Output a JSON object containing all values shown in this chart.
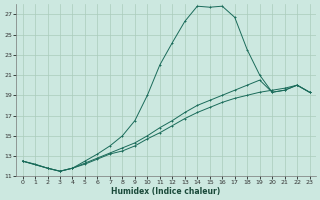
{
  "xlabel": "Humidex (Indice chaleur)",
  "bg_color": "#cce8e0",
  "grid_color": "#aaccbb",
  "line_color": "#1a6b5a",
  "xlim": [
    -0.5,
    23.5
  ],
  "ylim": [
    11,
    28
  ],
  "xticks": [
    0,
    1,
    2,
    3,
    4,
    5,
    6,
    7,
    8,
    9,
    10,
    11,
    12,
    13,
    14,
    15,
    16,
    17,
    18,
    19,
    20,
    21,
    22,
    23
  ],
  "yticks": [
    11,
    13,
    15,
    17,
    19,
    21,
    23,
    25,
    27
  ],
  "series1": [
    [
      0,
      12.5
    ],
    [
      1,
      12.2
    ],
    [
      2,
      11.8
    ],
    [
      3,
      11.5
    ],
    [
      4,
      11.8
    ],
    [
      5,
      12.5
    ],
    [
      6,
      13.2
    ],
    [
      7,
      14.0
    ],
    [
      8,
      15.0
    ],
    [
      9,
      16.5
    ],
    [
      10,
      19.0
    ],
    [
      11,
      22.0
    ],
    [
      12,
      24.2
    ],
    [
      13,
      26.3
    ],
    [
      14,
      27.8
    ],
    [
      15,
      27.7
    ],
    [
      16,
      27.8
    ],
    [
      17,
      26.7
    ],
    [
      18,
      23.5
    ],
    [
      19,
      21.0
    ],
    [
      20,
      19.3
    ],
    [
      21,
      19.5
    ],
    [
      22,
      20.0
    ],
    [
      23,
      19.3
    ]
  ],
  "series2": [
    [
      0,
      12.5
    ],
    [
      2,
      11.8
    ],
    [
      3,
      11.5
    ],
    [
      4,
      11.8
    ],
    [
      5,
      12.3
    ],
    [
      6,
      12.8
    ],
    [
      7,
      13.3
    ],
    [
      8,
      13.8
    ],
    [
      9,
      14.3
    ],
    [
      10,
      15.0
    ],
    [
      11,
      15.8
    ],
    [
      12,
      16.5
    ],
    [
      13,
      17.3
    ],
    [
      14,
      18.0
    ],
    [
      15,
      18.5
    ],
    [
      16,
      19.0
    ],
    [
      17,
      19.5
    ],
    [
      18,
      20.0
    ],
    [
      19,
      20.5
    ],
    [
      20,
      19.3
    ],
    [
      21,
      19.5
    ],
    [
      22,
      20.0
    ],
    [
      23,
      19.3
    ]
  ],
  "series3": [
    [
      0,
      12.5
    ],
    [
      2,
      11.8
    ],
    [
      3,
      11.5
    ],
    [
      4,
      11.8
    ],
    [
      5,
      12.2
    ],
    [
      6,
      12.7
    ],
    [
      7,
      13.2
    ],
    [
      8,
      13.5
    ],
    [
      9,
      14.0
    ],
    [
      10,
      14.7
    ],
    [
      11,
      15.3
    ],
    [
      12,
      16.0
    ],
    [
      13,
      16.7
    ],
    [
      14,
      17.3
    ],
    [
      15,
      17.8
    ],
    [
      16,
      18.3
    ],
    [
      17,
      18.7
    ],
    [
      18,
      19.0
    ],
    [
      19,
      19.3
    ],
    [
      20,
      19.5
    ],
    [
      21,
      19.7
    ],
    [
      22,
      20.0
    ],
    [
      23,
      19.3
    ]
  ]
}
